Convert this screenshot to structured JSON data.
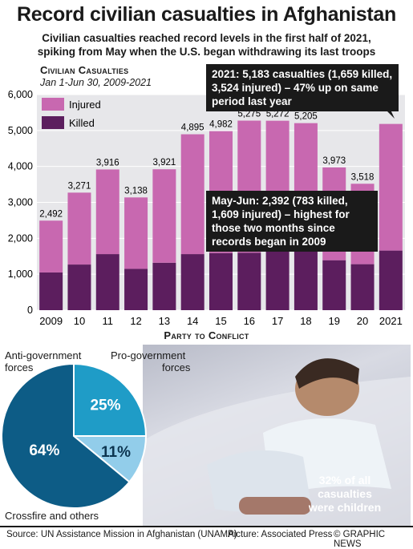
{
  "title": "Record civilian casualties in Afghanistan",
  "subtitle_lines": [
    "Civilian casualties reached record levels in the first half of 2021,",
    "spiking from May when the U.S. began withdrawing its last troops"
  ],
  "chart_heading": "Civilian Casualties",
  "chart_period": "Jan 1-Jun 30, 2009-2021",
  "colors": {
    "injured": "#c868b0",
    "killed": "#5c1e5e",
    "pie_dark": "#0d5c86",
    "pie_mid": "#1f9cc7",
    "pie_light": "#92cdea",
    "callout": "#1a1a1a"
  },
  "chart_data": {
    "type": "bar",
    "stacked": true,
    "categories": [
      "2009",
      "10",
      "11",
      "12",
      "13",
      "14",
      "15",
      "16",
      "17",
      "18",
      "19",
      "20",
      "2021"
    ],
    "totals": [
      2492,
      3271,
      3916,
      3138,
      3921,
      4895,
      4982,
      5275,
      5272,
      5205,
      3973,
      3518,
      5183
    ],
    "total_labels": [
      "2,492",
      "3,271",
      "3,916",
      "3,138",
      "3,921",
      "4,895",
      "4,982",
      "5,275",
      "5,272",
      "5,205",
      "3,973",
      "3,518",
      ""
    ],
    "series": [
      {
        "name": "Killed",
        "values": [
          1050,
          1270,
          1560,
          1150,
          1320,
          1560,
          1590,
          1600,
          1660,
          1690,
          1390,
          1280,
          1659
        ]
      },
      {
        "name": "Injured",
        "values": [
          1442,
          2001,
          2356,
          1988,
          2601,
          3335,
          3392,
          3675,
          3612,
          3515,
          2583,
          2238,
          3524
        ]
      }
    ],
    "ylim": [
      0,
      6000
    ],
    "yticks": [
      0,
      1000,
      2000,
      3000,
      4000,
      5000,
      6000
    ],
    "ytick_labels": [
      "0",
      "1,000",
      "2,000",
      "3,000",
      "4,000",
      "5,000",
      "6,000"
    ],
    "legend": [
      "Injured",
      "Killed"
    ],
    "legend_position": "top-left",
    "grid": true,
    "annotations": [
      "2021: 5,183 casualties (1,659 killed, 3,524 injured) – 47% up on same period last year",
      "May-Jun: 2,392 (783 killed, 1,609 injured) – highest for those two months since records began in 2009"
    ]
  },
  "callout_1": "2021: 5,183 casualties (1,659 killed, 3,524 injured) – 47% up on same period last year",
  "callout_2": "May-Jun: 2,392 (783 killed, 1,609 injured) – highest for those two months since records began in 2009",
  "section_title": "Party to Conflict",
  "pie_data": {
    "type": "pie",
    "slices": [
      {
        "name": "Anti-government forces",
        "value": 64,
        "label": "64%"
      },
      {
        "name": "Pro-government forces",
        "value": 25,
        "label": "25%"
      },
      {
        "name": "Crossfire and others",
        "value": 11,
        "label": "11%"
      }
    ]
  },
  "pie_labels": {
    "anti_1": "Anti-government",
    "anti_2": "forces",
    "pro_1": "Pro-government",
    "pro_2": "forces",
    "cross": "Crossfire and others"
  },
  "photo_caption": "32% of all casualties were children",
  "footer": {
    "source": "Source: UN Assistance Mission in Afghanistan (UNAMA)",
    "picture": "Picture: Associated Press",
    "credit": "© GRAPHIC NEWS"
  }
}
